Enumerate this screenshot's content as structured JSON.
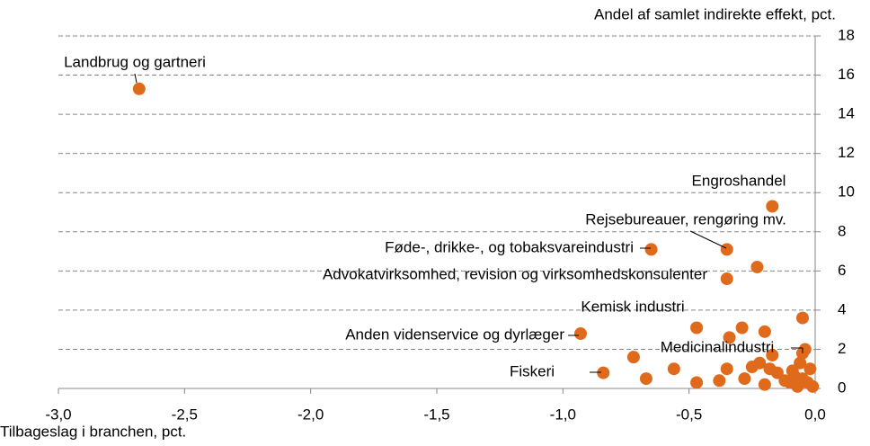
{
  "chart_data": {
    "type": "scatter",
    "y_axis_label": "Andel af samlet indirekte effekt, pct.",
    "x_axis_label": "Tilbageslag i branchen, pct.",
    "color": "#e06a1b",
    "grid": true,
    "xlim": [
      -3,
      0
    ],
    "xticks": [
      {
        "value": -3,
        "label": "-3,0"
      },
      {
        "value": -2.5,
        "label": "-2,5"
      },
      {
        "value": -2,
        "label": "-2,0"
      },
      {
        "value": -1.5,
        "label": "-1,5"
      },
      {
        "value": -1,
        "label": "-1,0"
      },
      {
        "value": -0.5,
        "label": "-0,5"
      },
      {
        "value": 0,
        "label": "0,0"
      }
    ],
    "ylim": [
      0,
      18
    ],
    "yticks": [
      0,
      2,
      4,
      6,
      8,
      10,
      12,
      14,
      16,
      18
    ],
    "x": [
      -2.68,
      -0.17,
      -0.35,
      -0.65,
      -0.23,
      -0.35,
      -0.47,
      -0.29,
      -0.2,
      -0.05,
      -0.34,
      -0.93,
      -0.05,
      -0.84,
      -0.72,
      -0.67,
      -0.56,
      -0.47,
      -0.38,
      -0.35,
      -0.28,
      -0.25,
      -0.22,
      -0.2,
      -0.18,
      -0.17,
      -0.15,
      -0.1,
      -0.08,
      -0.06,
      -0.04,
      -0.02,
      -0.01,
      -0.03,
      -0.07,
      -0.05,
      -0.12,
      -0.09
    ],
    "values": [
      15.3,
      9.3,
      7.1,
      7.1,
      6.2,
      5.6,
      3.1,
      3.1,
      2.9,
      3.6,
      2.6,
      2.8,
      1.8,
      0.8,
      1.6,
      0.5,
      1.0,
      0.3,
      0.4,
      1.0,
      0.5,
      1.1,
      1.3,
      0.2,
      1.0,
      1.7,
      0.8,
      0.3,
      0.6,
      1.3,
      2.0,
      1.0,
      0.1,
      0.3,
      0.1,
      0.5,
      0.4,
      0.9
    ],
    "annotations": [
      "Landbrug og gartneri",
      "Engroshandel",
      "Rejsebureauer, rengøring mv.",
      "Føde-, drikke-, og tobaksvareindustri",
      "Advokatvirksomhed, revision og virksomhedskonsulenter",
      "Kemisk industri",
      "Anden videnservice og dyrlæger",
      "Medicinalindustri",
      "Fiskeri"
    ]
  }
}
